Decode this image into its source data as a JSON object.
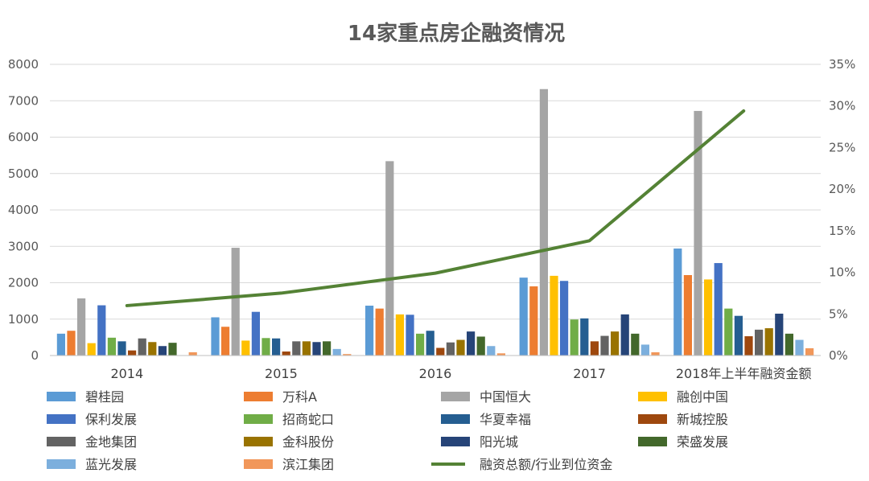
{
  "chart_data": {
    "type": "bar",
    "title": "14家重点房企融资情况",
    "categories": [
      "2014",
      "2015",
      "2016",
      "2017",
      "2018年上半年融资金额"
    ],
    "ylim": [
      0,
      8000
    ],
    "y_ticks": [
      "0",
      "1000",
      "2000",
      "3000",
      "4000",
      "5000",
      "6000",
      "7000",
      "8000"
    ],
    "y2lim": [
      0,
      35
    ],
    "y2_ticks": [
      "0%",
      "5%",
      "10%",
      "15%",
      "20%",
      "25%",
      "30%",
      "35%"
    ],
    "grid": true,
    "legend_position": "bottom",
    "series": [
      {
        "name": "碧桂园",
        "color": "#5B9BD5",
        "values": [
          600,
          1050,
          1370,
          2140,
          2940
        ]
      },
      {
        "name": "万科A",
        "color": "#ED7D31",
        "values": [
          680,
          790,
          1290,
          1900,
          2210
        ]
      },
      {
        "name": "中国恒大",
        "color": "#A5A5A5",
        "values": [
          1570,
          2960,
          5340,
          7320,
          6720
        ]
      },
      {
        "name": "融创中国",
        "color": "#FFC000",
        "values": [
          340,
          410,
          1130,
          2190,
          2090
        ]
      },
      {
        "name": "保利发展",
        "color": "#4472C4",
        "values": [
          1380,
          1200,
          1120,
          2050,
          2540
        ]
      },
      {
        "name": "招商蛇口",
        "color": "#70AD47",
        "values": [
          490,
          480,
          600,
          990,
          1290
        ]
      },
      {
        "name": "华夏幸福",
        "color": "#255E91",
        "values": [
          390,
          470,
          680,
          1020,
          1090
        ]
      },
      {
        "name": "新城控股",
        "color": "#9E480E",
        "values": [
          140,
          110,
          210,
          390,
          530
        ]
      },
      {
        "name": "金地集团",
        "color": "#636363",
        "values": [
          470,
          390,
          360,
          540,
          710
        ]
      },
      {
        "name": "金科股份",
        "color": "#997300",
        "values": [
          370,
          390,
          430,
          660,
          750
        ]
      },
      {
        "name": "阳光城",
        "color": "#264478",
        "values": [
          260,
          370,
          660,
          1130,
          1150
        ]
      },
      {
        "name": "荣盛发展",
        "color": "#43682B",
        "values": [
          350,
          390,
          520,
          600,
          600
        ]
      },
      {
        "name": "蓝光发展",
        "color": "#7CAFDD",
        "values": [
          0,
          180,
          260,
          300,
          430
        ]
      },
      {
        "name": "滨江集团",
        "color": "#F1975A",
        "values": [
          90,
          40,
          60,
          90,
          200
        ]
      }
    ],
    "line_series": {
      "name": "融资总额/行业到位资金",
      "color": "#548235",
      "axis": "secondary",
      "values": [
        6.0,
        7.5,
        9.9,
        13.8,
        29.4
      ]
    }
  }
}
